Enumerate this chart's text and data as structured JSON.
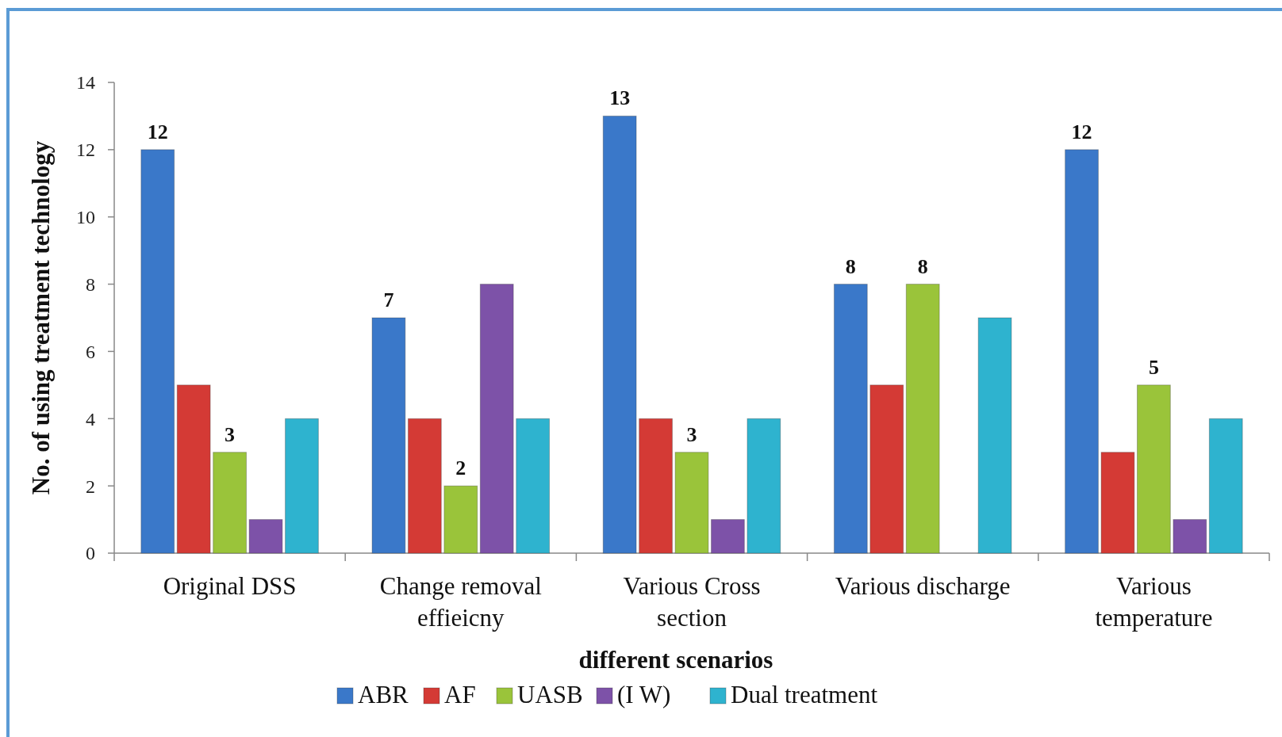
{
  "chart_data": {
    "type": "bar",
    "xlabel": "different scenarios",
    "ylabel": "No. of using treatment technology",
    "categories": [
      "Original DSS",
      "Change removal effieicny",
      "Various Cross section",
      "Various discharge",
      "Various temperature"
    ],
    "series": [
      {
        "name": "ABR",
        "color": "#3a78c9",
        "values": [
          12,
          7,
          13,
          8,
          12
        ],
        "value_labels": [
          "12",
          "7",
          "13",
          "8",
          "12"
        ]
      },
      {
        "name": "AF",
        "color": "#d43a35",
        "values": [
          5,
          4,
          4,
          5,
          3
        ]
      },
      {
        "name": "UASB",
        "color": "#9ac43a",
        "values": [
          3,
          2,
          3,
          8,
          5
        ],
        "value_labels": [
          "3",
          "2",
          "3",
          "8",
          "5"
        ]
      },
      {
        "name": "(I W)",
        "color": "#7d52a8",
        "values": [
          1,
          8,
          1,
          null,
          1
        ]
      },
      {
        "name": "Dual treatment",
        "color": "#2eb3cf",
        "values": [
          4,
          4,
          4,
          7,
          4
        ]
      }
    ],
    "ylim": [
      0,
      14
    ],
    "yticks": [
      0,
      2,
      4,
      6,
      8,
      10,
      12,
      14
    ],
    "grid": false,
    "legend": "bottom"
  }
}
